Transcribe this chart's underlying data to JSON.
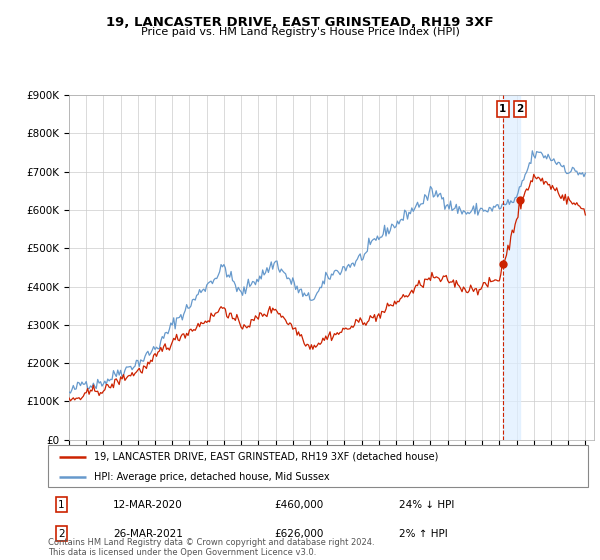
{
  "title": "19, LANCASTER DRIVE, EAST GRINSTEAD, RH19 3XF",
  "subtitle": "Price paid vs. HM Land Registry's House Price Index (HPI)",
  "ylim": [
    0,
    900000
  ],
  "yticks": [
    0,
    100000,
    200000,
    300000,
    400000,
    500000,
    600000,
    700000,
    800000,
    900000
  ],
  "ytick_labels": [
    "£0",
    "£100K",
    "£200K",
    "£300K",
    "£400K",
    "£500K",
    "£600K",
    "£700K",
    "£800K",
    "£900K"
  ],
  "hpi_color": "#6699cc",
  "price_color": "#cc2200",
  "vline_color": "#cc2200",
  "shade_color": "#ddeeff",
  "legend_label_red": "19, LANCASTER DRIVE, EAST GRINSTEAD, RH19 3XF (detached house)",
  "legend_label_blue": "HPI: Average price, detached house, Mid Sussex",
  "transaction_1_date": "12-MAR-2020",
  "transaction_1_price": "£460,000",
  "transaction_1_hpi": "24% ↓ HPI",
  "transaction_2_date": "26-MAR-2021",
  "transaction_2_price": "£626,000",
  "transaction_2_hpi": "2% ↑ HPI",
  "footer": "Contains HM Land Registry data © Crown copyright and database right 2024.\nThis data is licensed under the Open Government Licence v3.0.",
  "background_color": "#ffffff",
  "grid_color": "#cccccc",
  "t1_year": 2020.2,
  "t2_year": 2021.2,
  "t1_price": 460000,
  "t2_price": 626000,
  "xlim_start": 1995,
  "xlim_end": 2025.5
}
